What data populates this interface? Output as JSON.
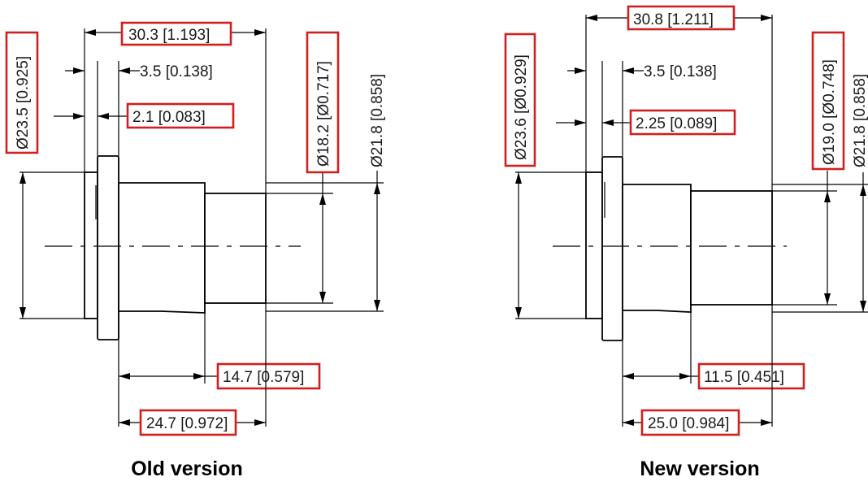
{
  "accent_color": "#d11f1f",
  "old": {
    "caption": "Old version",
    "dims": {
      "overall_length": "30.3 [1.193]",
      "flange_to_step": "3.5 [0.138]",
      "flange_thickness": "2.1 [0.083]",
      "flange_diameter": "Ø23.5 [0.925]",
      "tip_diameter": "Ø18.2 [Ø0.717]",
      "body_diameter": "Ø21.8 [0.858]",
      "body_length": "14.7 [0.579]",
      "shaft_length": "24.7 [0.972]"
    }
  },
  "new": {
    "caption": "New version",
    "dims": {
      "overall_length": "30.8 [1.211]",
      "flange_to_step": "3.5 [0.138]",
      "flange_thickness": "2.25 [0.089]",
      "flange_diameter": "Ø23.6 [Ø0.929]",
      "tip_diameter": "Ø19.0 [Ø0.748]",
      "body_diameter": "Ø21.8 [0.858]",
      "body_length": "11.5 [0.451]",
      "shaft_length": "25.0 [0.984]"
    }
  }
}
